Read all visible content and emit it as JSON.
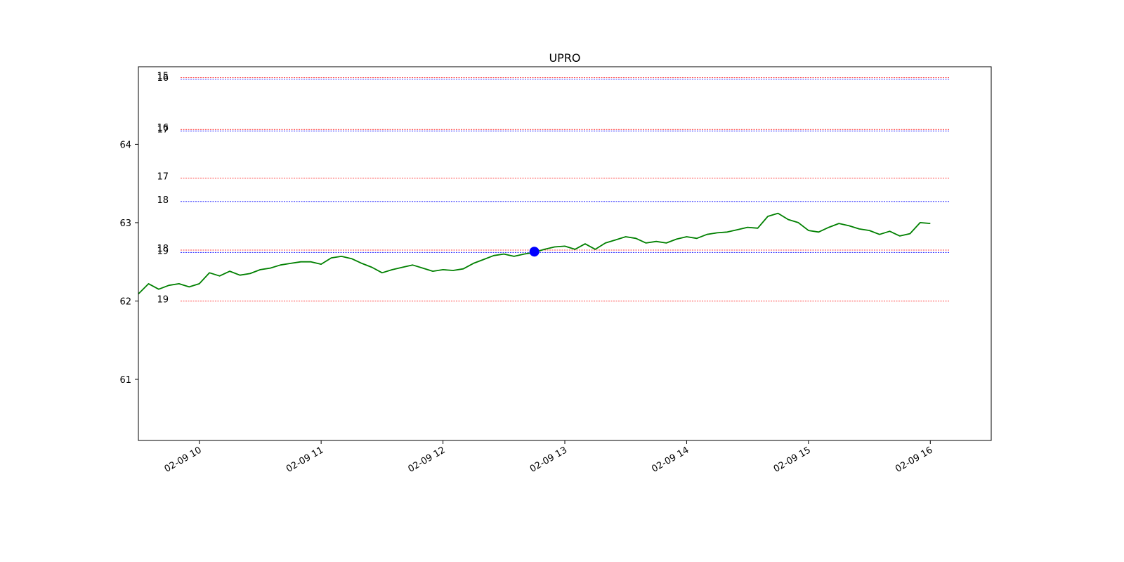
{
  "chart_data": {
    "type": "line",
    "title": "UPRO",
    "xlabel": "",
    "ylabel": "",
    "x_domain": [
      "2024-02-09 09:30",
      "2024-02-09 16:30"
    ],
    "ylim": [
      60.22,
      64.99
    ],
    "yticks": [
      61,
      62,
      63,
      64
    ],
    "ytick_labels": [
      "61",
      "62",
      "63",
      "64"
    ],
    "xticks": [
      "2024-02-09 10:00",
      "2024-02-09 11:00",
      "2024-02-09 12:00",
      "2024-02-09 13:00",
      "2024-02-09 14:00",
      "2024-02-09 15:00",
      "2024-02-09 16:00"
    ],
    "xtick_labels": [
      "02-09 10",
      "02-09 11",
      "02-09 12",
      "02-09 13",
      "02-09 14",
      "02-09 15",
      "02-09 16"
    ],
    "grid": false,
    "series": [
      {
        "color": "#008000",
        "points": [
          [
            "2024-02-09 09:30",
            62.09
          ],
          [
            "2024-02-09 09:35",
            62.22
          ],
          [
            "2024-02-09 09:40",
            62.15
          ],
          [
            "2024-02-09 09:45",
            62.2
          ],
          [
            "2024-02-09 09:50",
            62.22
          ],
          [
            "2024-02-09 09:55",
            62.18
          ],
          [
            "2024-02-09 10:00",
            62.22
          ],
          [
            "2024-02-09 10:05",
            62.36
          ],
          [
            "2024-02-09 10:10",
            62.32
          ],
          [
            "2024-02-09 10:15",
            62.38
          ],
          [
            "2024-02-09 10:20",
            62.33
          ],
          [
            "2024-02-09 10:25",
            62.35
          ],
          [
            "2024-02-09 10:30",
            62.4
          ],
          [
            "2024-02-09 10:35",
            62.42
          ],
          [
            "2024-02-09 10:40",
            62.46
          ],
          [
            "2024-02-09 10:45",
            62.48
          ],
          [
            "2024-02-09 10:50",
            62.5
          ],
          [
            "2024-02-09 10:55",
            62.5
          ],
          [
            "2024-02-09 11:00",
            62.47
          ],
          [
            "2024-02-09 11:05",
            62.55
          ],
          [
            "2024-02-09 11:10",
            62.57
          ],
          [
            "2024-02-09 11:15",
            62.54
          ],
          [
            "2024-02-09 11:20",
            62.48
          ],
          [
            "2024-02-09 11:25",
            62.43
          ],
          [
            "2024-02-09 11:30",
            62.36
          ],
          [
            "2024-02-09 11:35",
            62.4
          ],
          [
            "2024-02-09 11:40",
            62.43
          ],
          [
            "2024-02-09 11:45",
            62.46
          ],
          [
            "2024-02-09 11:50",
            62.42
          ],
          [
            "2024-02-09 11:55",
            62.38
          ],
          [
            "2024-02-09 12:00",
            62.4
          ],
          [
            "2024-02-09 12:05",
            62.39
          ],
          [
            "2024-02-09 12:10",
            62.41
          ],
          [
            "2024-02-09 12:15",
            62.48
          ],
          [
            "2024-02-09 12:20",
            62.53
          ],
          [
            "2024-02-09 12:25",
            62.58
          ],
          [
            "2024-02-09 12:30",
            62.6
          ],
          [
            "2024-02-09 12:35",
            62.57
          ],
          [
            "2024-02-09 12:40",
            62.6
          ],
          [
            "2024-02-09 12:45",
            62.62
          ],
          [
            "2024-02-09 12:50",
            62.66
          ],
          [
            "2024-02-09 12:55",
            62.69
          ],
          [
            "2024-02-09 13:00",
            62.7
          ],
          [
            "2024-02-09 13:05",
            62.66
          ],
          [
            "2024-02-09 13:10",
            62.73
          ],
          [
            "2024-02-09 13:15",
            62.66
          ],
          [
            "2024-02-09 13:20",
            62.74
          ],
          [
            "2024-02-09 13:25",
            62.78
          ],
          [
            "2024-02-09 13:30",
            62.82
          ],
          [
            "2024-02-09 13:35",
            62.8
          ],
          [
            "2024-02-09 13:40",
            62.74
          ],
          [
            "2024-02-09 13:45",
            62.76
          ],
          [
            "2024-02-09 13:50",
            62.74
          ],
          [
            "2024-02-09 13:55",
            62.79
          ],
          [
            "2024-02-09 14:00",
            62.82
          ],
          [
            "2024-02-09 14:05",
            62.8
          ],
          [
            "2024-02-09 14:10",
            62.85
          ],
          [
            "2024-02-09 14:15",
            62.87
          ],
          [
            "2024-02-09 14:20",
            62.88
          ],
          [
            "2024-02-09 14:25",
            62.91
          ],
          [
            "2024-02-09 14:30",
            62.94
          ],
          [
            "2024-02-09 14:35",
            62.93
          ],
          [
            "2024-02-09 14:40",
            63.08
          ],
          [
            "2024-02-09 14:45",
            63.12
          ],
          [
            "2024-02-09 14:50",
            63.04
          ],
          [
            "2024-02-09 14:55",
            63.0
          ],
          [
            "2024-02-09 15:00",
            62.9
          ],
          [
            "2024-02-09 15:05",
            62.88
          ],
          [
            "2024-02-09 15:10",
            62.94
          ],
          [
            "2024-02-09 15:15",
            62.99
          ],
          [
            "2024-02-09 15:20",
            62.96
          ],
          [
            "2024-02-09 15:25",
            62.92
          ],
          [
            "2024-02-09 15:30",
            62.9
          ],
          [
            "2024-02-09 15:35",
            62.85
          ],
          [
            "2024-02-09 15:40",
            62.89
          ],
          [
            "2024-02-09 15:45",
            62.83
          ],
          [
            "2024-02-09 15:50",
            62.86
          ],
          [
            "2024-02-09 15:55",
            63.0
          ],
          [
            "2024-02-09 16:00",
            62.99
          ]
        ]
      }
    ],
    "marker": {
      "x": "2024-02-09 12:45",
      "y": 62.63,
      "color": "#0000ff"
    },
    "levels": [
      {
        "label": "15",
        "y": 64.85,
        "color": "#ff0000"
      },
      {
        "label": "16",
        "y": 64.83,
        "color": "#0000ff"
      },
      {
        "label": "16",
        "y": 64.19,
        "color": "#ff0000"
      },
      {
        "label": "17",
        "y": 64.17,
        "color": "#0000ff"
      },
      {
        "label": "17",
        "y": 63.57,
        "color": "#ff0000"
      },
      {
        "label": "18",
        "y": 63.27,
        "color": "#0000ff"
      },
      {
        "label": "18",
        "y": 62.65,
        "color": "#ff0000"
      },
      {
        "label": "19",
        "y": 62.62,
        "color": "#0000ff"
      },
      {
        "label": "19",
        "y": 62.0,
        "color": "#ff0000"
      }
    ]
  }
}
